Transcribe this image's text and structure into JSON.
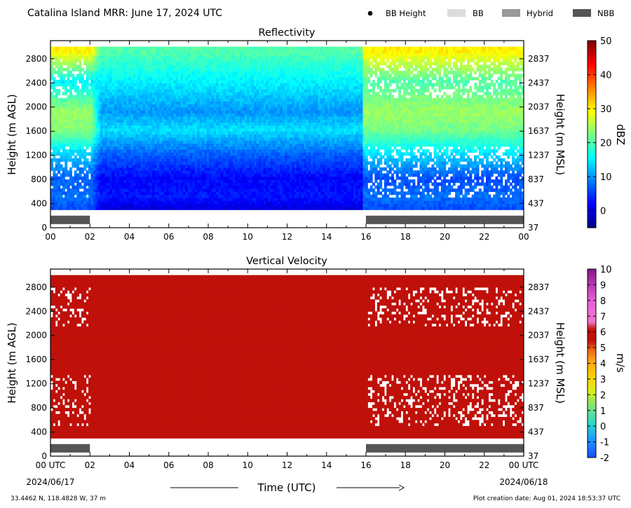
{
  "header": {
    "title": "Catalina Island MRR:  June 17, 2024 UTC",
    "legend": [
      {
        "label": "BB Height",
        "marker": "dot",
        "color": "#000000"
      },
      {
        "label": "BB",
        "marker": "swatch",
        "color": "#dcdcdc"
      },
      {
        "label": "Hybrid",
        "marker": "swatch",
        "color": "#999999"
      },
      {
        "label": "NBB",
        "marker": "swatch",
        "color": "#555555"
      }
    ]
  },
  "footer": {
    "location": "33.4462 N, 118.4828 W, 37 m",
    "created": "Plot creation date: Aug 01, 2024 18:53:37 UTC",
    "date_start": "2024/06/17",
    "date_end": "2024/06/18",
    "time_label": "Time (UTC)"
  },
  "chart_data": [
    {
      "type": "heatmap",
      "title": "Reflectivity",
      "ylabel": "Height (m AGL)",
      "ylabel_right": "Height (m MSL)",
      "xlim": [
        0,
        24
      ],
      "ylim": [
        0,
        3100
      ],
      "x_ticks": [
        "00",
        "02",
        "04",
        "06",
        "08",
        "10",
        "12",
        "14",
        "16",
        "18",
        "20",
        "22",
        "00"
      ],
      "y_ticks": [
        0,
        400,
        800,
        1200,
        1600,
        2000,
        2400,
        2800
      ],
      "y_ticks_right": [
        37,
        437,
        837,
        1237,
        1637,
        2037,
        2437,
        2837
      ],
      "colorbar": {
        "label": "dBZ",
        "min": -5,
        "max": 50,
        "ticks": [
          0,
          10,
          20,
          30,
          40,
          50
        ],
        "colormap": "jet"
      },
      "nbb_periods": [
        [
          0,
          2
        ],
        [
          16,
          24
        ]
      ],
      "profile_dbz": [
        {
          "height": 300,
          "early": 6,
          "mid": 0,
          "late": 6
        },
        {
          "height": 500,
          "early": 8,
          "mid": 3,
          "late": 8
        },
        {
          "height": 800,
          "early": 7,
          "mid": 2,
          "late": 6
        },
        {
          "height": 1200,
          "early": 13,
          "mid": 7,
          "late": 14
        },
        {
          "height": 1600,
          "early": 23,
          "mid": 14,
          "late": 22
        },
        {
          "height": 1900,
          "early": 24,
          "mid": 10,
          "late": 24
        },
        {
          "height": 2400,
          "early": 15,
          "mid": 15,
          "late": 20
        },
        {
          "height": 2900,
          "early": 30,
          "mid": 20,
          "late": 30
        }
      ]
    },
    {
      "type": "heatmap",
      "title": "Vertical Velocity",
      "ylabel": "Height (m AGL)",
      "ylabel_right": "Height (m MSL)",
      "xlim": [
        0,
        24
      ],
      "ylim": [
        0,
        3100
      ],
      "x_ticks": [
        "00 UTC",
        "02",
        "04",
        "06",
        "08",
        "10",
        "12",
        "14",
        "16",
        "18",
        "20",
        "22",
        "00 UTC"
      ],
      "y_ticks": [
        0,
        400,
        800,
        1200,
        1600,
        2000,
        2400,
        2800
      ],
      "y_ticks_right": [
        37,
        437,
        837,
        1237,
        1637,
        2037,
        2437,
        2837
      ],
      "colorbar": {
        "label": "m/s",
        "min": -2,
        "max": 10,
        "ticks": [
          -2,
          -1,
          0,
          1,
          2,
          3,
          4,
          5,
          6,
          7,
          8,
          9,
          10
        ]
      },
      "field_value_ms": 6,
      "nbb_periods": [
        [
          0,
          2
        ],
        [
          16,
          24
        ]
      ]
    }
  ]
}
